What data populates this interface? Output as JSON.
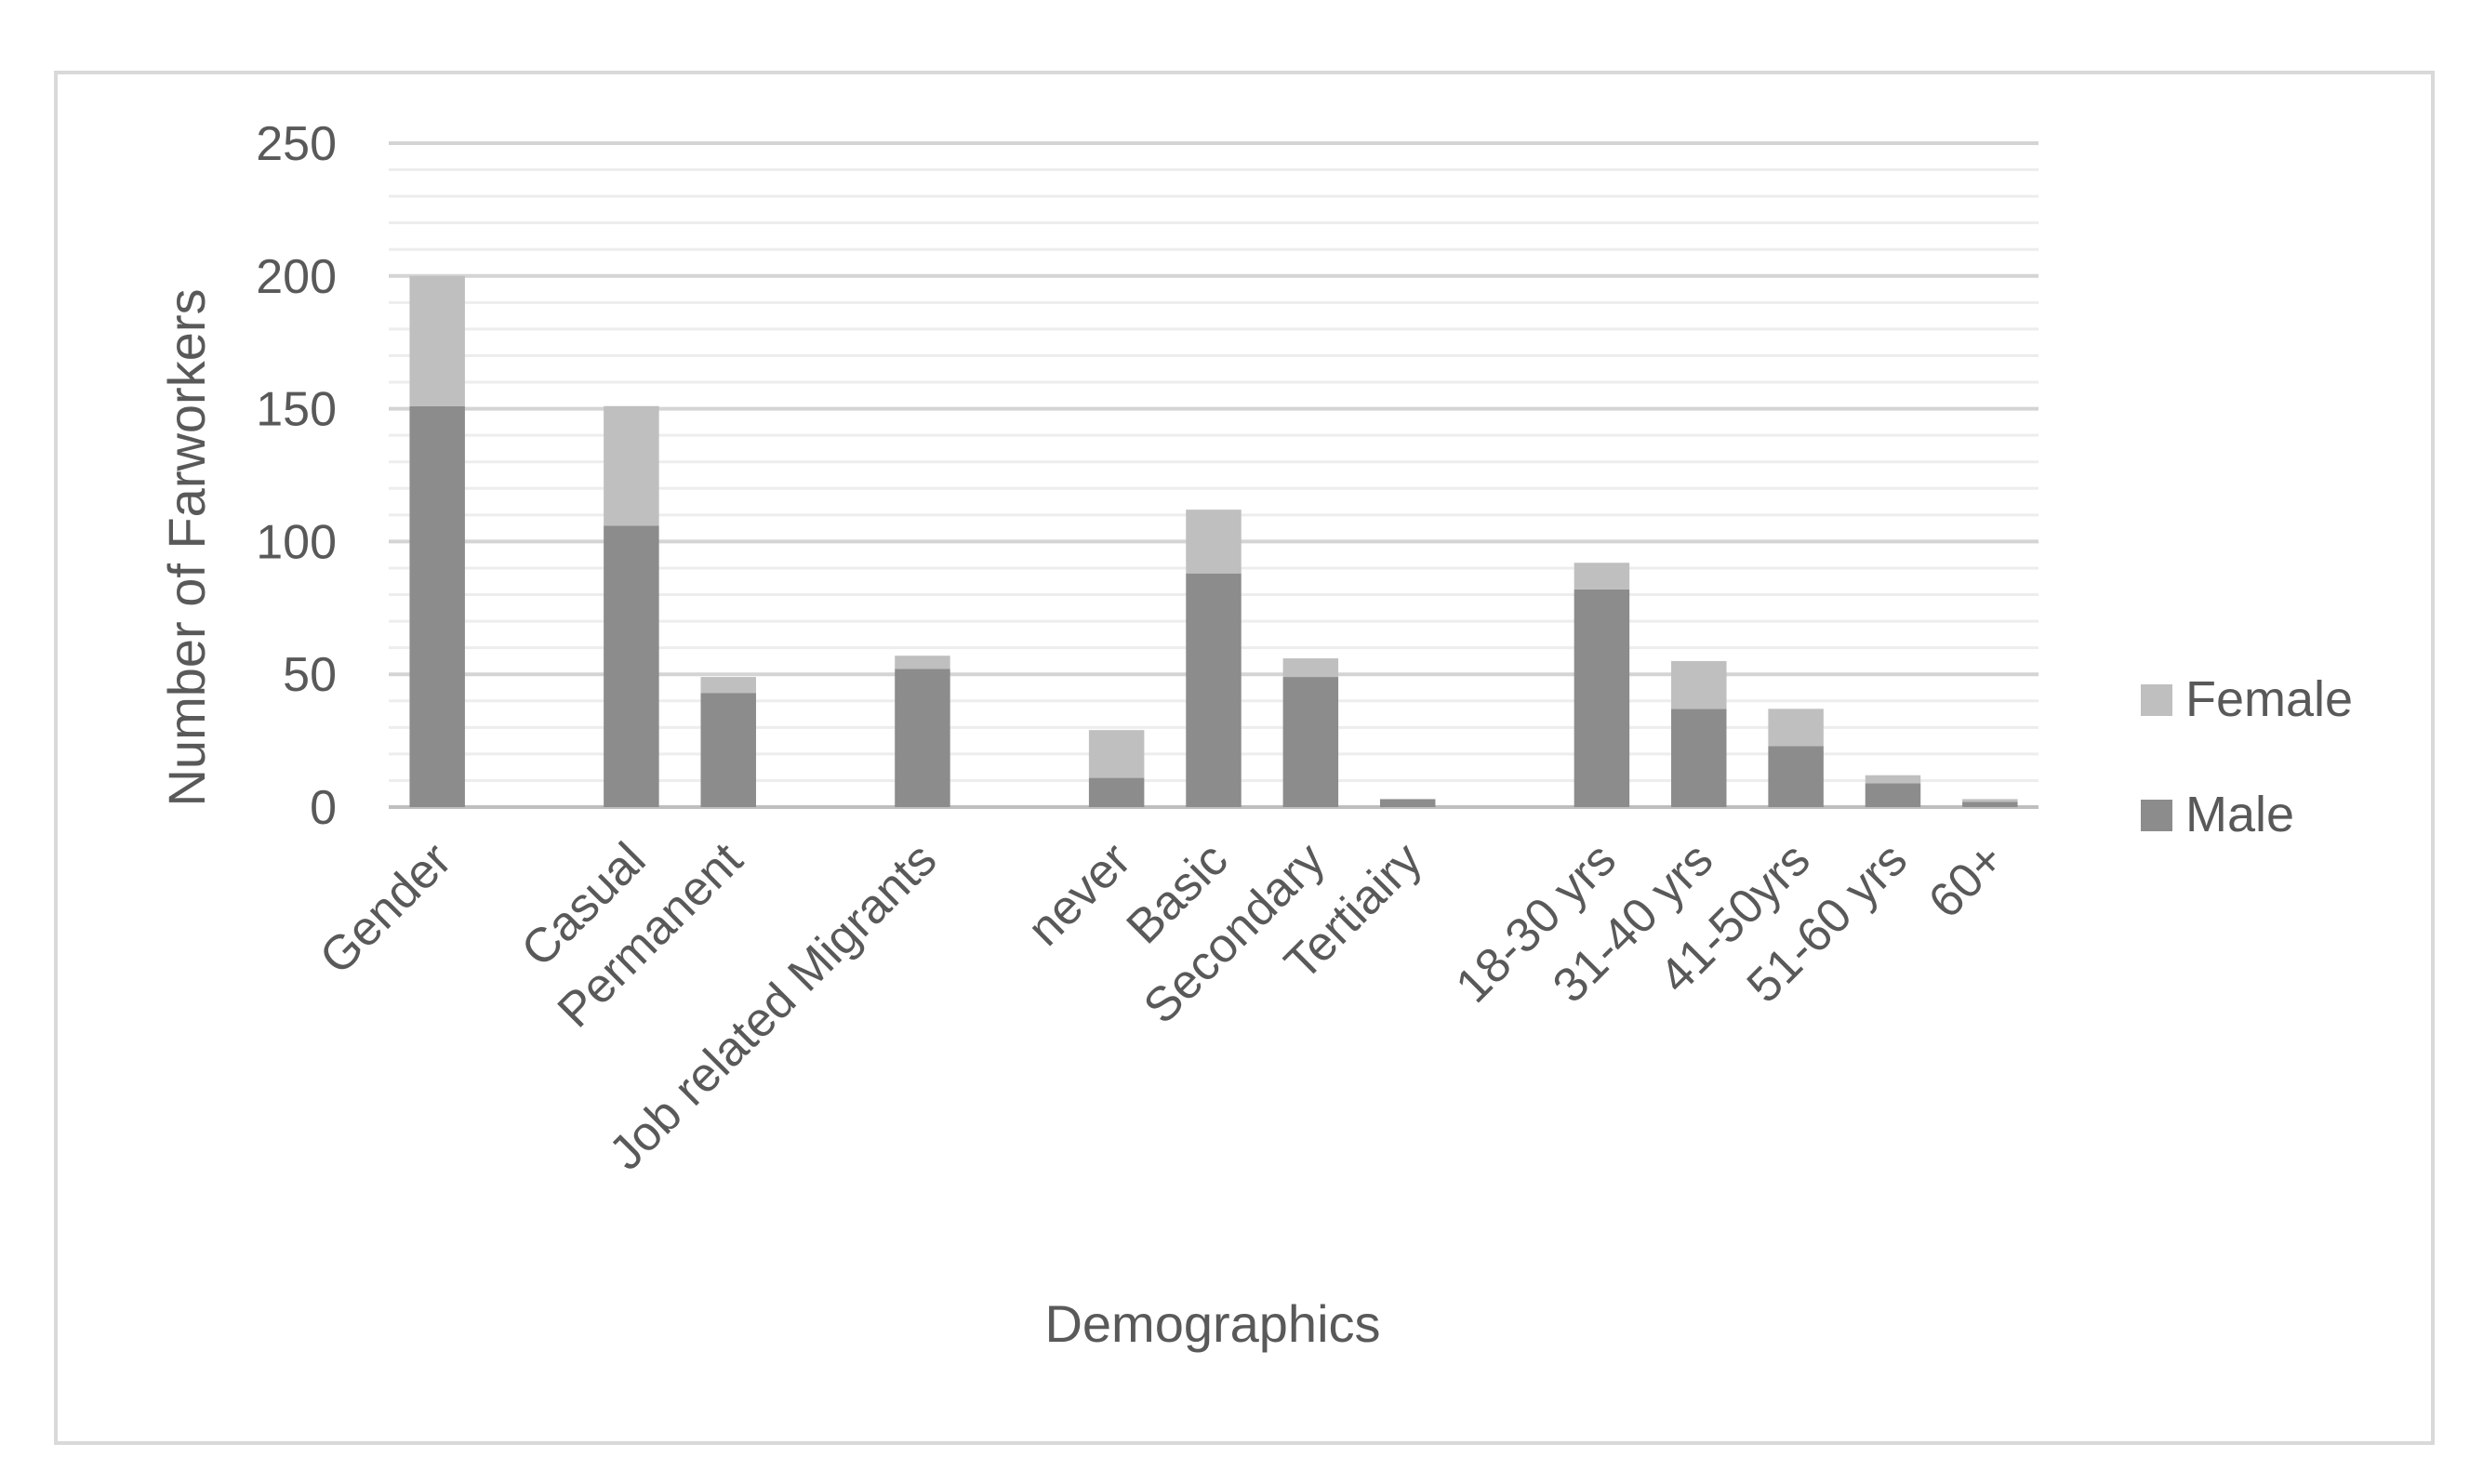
{
  "chart_data": {
    "type": "bar",
    "stacked": true,
    "title": "",
    "xlabel": "Demographics",
    "ylabel": "Number of Farworkers",
    "ylim": [
      0,
      250
    ],
    "yticks": [
      0,
      50,
      100,
      150,
      200,
      250
    ],
    "grid": true,
    "legend_position": "right",
    "slots": [
      "Gender",
      "",
      "Casual",
      "Permanent",
      "",
      "Job related Migrants",
      "",
      "never",
      "Basic",
      "Secondary",
      "Tertiairy",
      "",
      "18-30 yrs",
      "31-40 yrs",
      "41-50yrs",
      "51-60 yrs",
      "60+"
    ],
    "categories": [
      "Gender",
      "Casual",
      "Permanent",
      "Job related Migrants",
      "never",
      "Basic",
      "Secondary",
      "Tertiairy",
      "18-30 yrs",
      "31-40 yrs",
      "41-50yrs",
      "51-60 yrs",
      "60+"
    ],
    "series": [
      {
        "name": "Male",
        "color": "#8c8c8c",
        "values": [
          151,
          106,
          43,
          52,
          11,
          88,
          49,
          3,
          82,
          37,
          23,
          9,
          2
        ]
      },
      {
        "name": "Female",
        "color": "#bfbfbf",
        "values": [
          49,
          45,
          6,
          5,
          18,
          24,
          7,
          0,
          10,
          18,
          14,
          3,
          1
        ]
      }
    ],
    "legend_order": [
      "Female",
      "Male"
    ]
  }
}
